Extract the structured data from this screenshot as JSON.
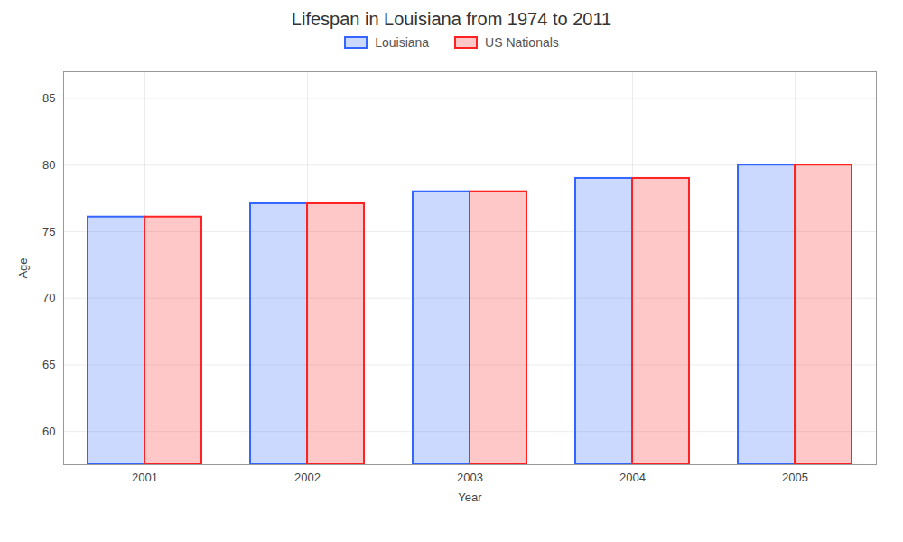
{
  "chart_data": {
    "type": "bar",
    "title": "Lifespan in Louisiana from 1974 to 2011",
    "xlabel": "Year",
    "ylabel": "Age",
    "categories": [
      "2001",
      "2002",
      "2003",
      "2004",
      "2005"
    ],
    "series": [
      {
        "name": "Louisiana",
        "color": "#3366ff",
        "values": [
          76.1,
          77.1,
          78.0,
          79.0,
          80.0
        ]
      },
      {
        "name": "US Nationals",
        "color": "#ff2222",
        "values": [
          76.1,
          77.1,
          78.0,
          79.0,
          80.0
        ]
      }
    ],
    "ylim": [
      57.5,
      87
    ],
    "yticks": [
      60,
      65,
      70,
      75,
      80,
      85
    ],
    "grid": true,
    "legend": "top"
  }
}
